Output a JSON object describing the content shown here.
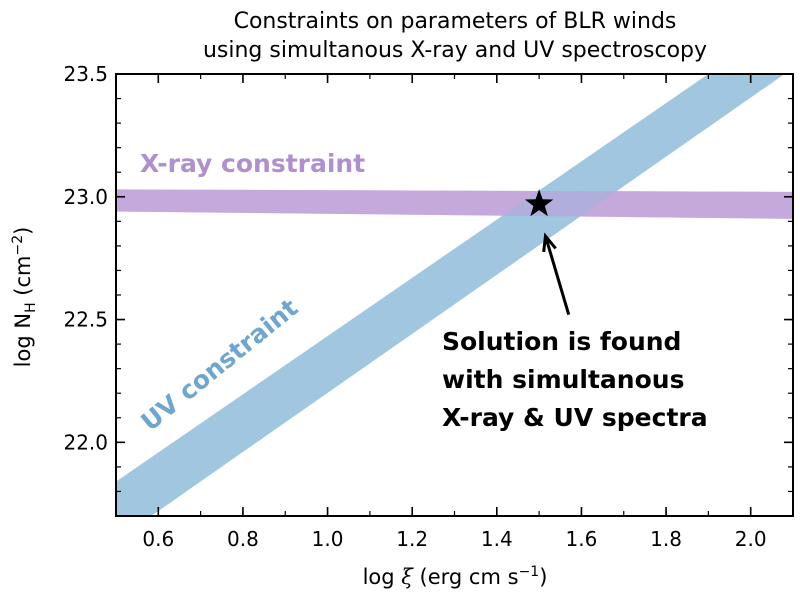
{
  "chart_data": {
    "type": "area",
    "title": "Constraints on parameters of BLR winds",
    "subtitle": "using simultanous X-ray and UV spectroscopy",
    "xlabel": {
      "prefix": "log ",
      "symbol": "ξ",
      "unit_open": " (erg cm s",
      "unit_sup": "−1",
      "unit_close": ")"
    },
    "ylabel": {
      "prefix": "log N",
      "sub": "H",
      "unit_open": " (cm",
      "unit_sup": "−2",
      "unit_close": ")"
    },
    "xlim": [
      0.5,
      2.1
    ],
    "ylim": [
      21.7,
      23.5
    ],
    "x_ticks": [
      "0.6",
      "0.8",
      "1.0",
      "1.2",
      "1.4",
      "1.6",
      "1.8",
      "2.0"
    ],
    "y_ticks": [
      "22.0",
      "22.5",
      "23.0",
      "23.5"
    ],
    "grid": false,
    "series": [
      {
        "name": "X-ray constraint",
        "color": "#c5a8dc",
        "label_color": "#b08fcf",
        "lower": {
          "x": [
            0.5,
            2.1
          ],
          "y": [
            22.94,
            22.91
          ]
        },
        "upper": {
          "x": [
            0.5,
            2.1
          ],
          "y": [
            23.03,
            23.02
          ]
        }
      },
      {
        "name": "UV constraint",
        "color": "#8fbcdb",
        "label_color": "#6fa6d0",
        "lower": {
          "x": [
            0.5,
            2.08
          ],
          "y": [
            21.6,
            23.5
          ]
        },
        "upper": {
          "x": [
            0.5,
            1.9
          ],
          "y": [
            21.84,
            23.5
          ]
        }
      }
    ],
    "marker": {
      "x": 1.5,
      "y": 22.97,
      "symbol": "star",
      "color": "#000000"
    },
    "annotation": {
      "lines": [
        "Solution is found",
        "with simultanous",
        "X-ray & UV spectra"
      ],
      "arrow_from": {
        "x": 1.57,
        "y": 22.52
      },
      "arrow_to": {
        "x": 1.515,
        "y": 22.84
      }
    }
  }
}
